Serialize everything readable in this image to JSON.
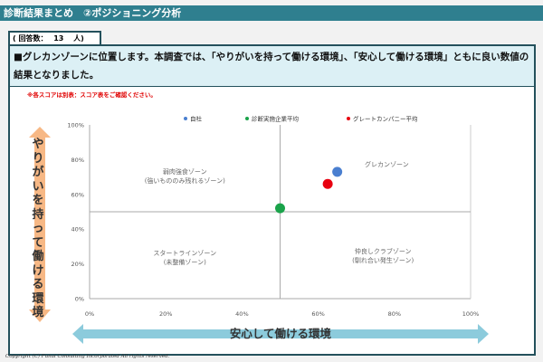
{
  "header": {
    "title": "診断結果まとめ　②ポジショニング分析"
  },
  "respondents": {
    "label": "( 回答数：　 13　 人)"
  },
  "message": "■グレカンゾーンに位置します。本調査では、「やりがいを持って働ける環境」、「安心して働ける環境」ともに良い数値の結果となりました。",
  "note": "※各スコアは別表：スコア表をご確認ください。",
  "footer": {
    "copyright": "Copyright (C) Funai Consulting Incorporated All rights reserved."
  },
  "chart_data": {
    "type": "scatter",
    "xlabel": "安心して働ける環境",
    "ylabel": "やりがいを持って働ける環境",
    "xlim": [
      0,
      100
    ],
    "ylim": [
      0,
      100
    ],
    "x_ticks": [
      "0%",
      "20%",
      "40%",
      "60%",
      "80%",
      "100%"
    ],
    "y_ticks": [
      "0%",
      "20%",
      "40%",
      "60%",
      "80%",
      "100%"
    ],
    "legend_position": "top",
    "series": [
      {
        "name": "自社",
        "color": "#4a7fd0",
        "x": 65,
        "y": 73
      },
      {
        "name": "診断実施企業平均",
        "color": "#1aa34a",
        "x": 50,
        "y": 52
      },
      {
        "name": "グレートカンパニー平均",
        "color": "#e80010",
        "x": 62.5,
        "y": 66
      }
    ],
    "quadrant_lines": {
      "x": 50,
      "y": 50
    },
    "zones": [
      {
        "line1": "弱肉強食ゾーン",
        "line2": "(強いもののみ残れるゾーン)",
        "x": 25,
        "y": 72
      },
      {
        "line1": "グレカンゾーン",
        "line2": "",
        "x": 78,
        "y": 76
      },
      {
        "line1": "スタートラインゾーン",
        "line2": "(未整備ゾーン)",
        "x": 25,
        "y": 25
      },
      {
        "line1": "仲良しクラブゾーン",
        "line2": "(馴れ合い発生ゾーン)",
        "x": 77,
        "y": 26
      }
    ]
  }
}
